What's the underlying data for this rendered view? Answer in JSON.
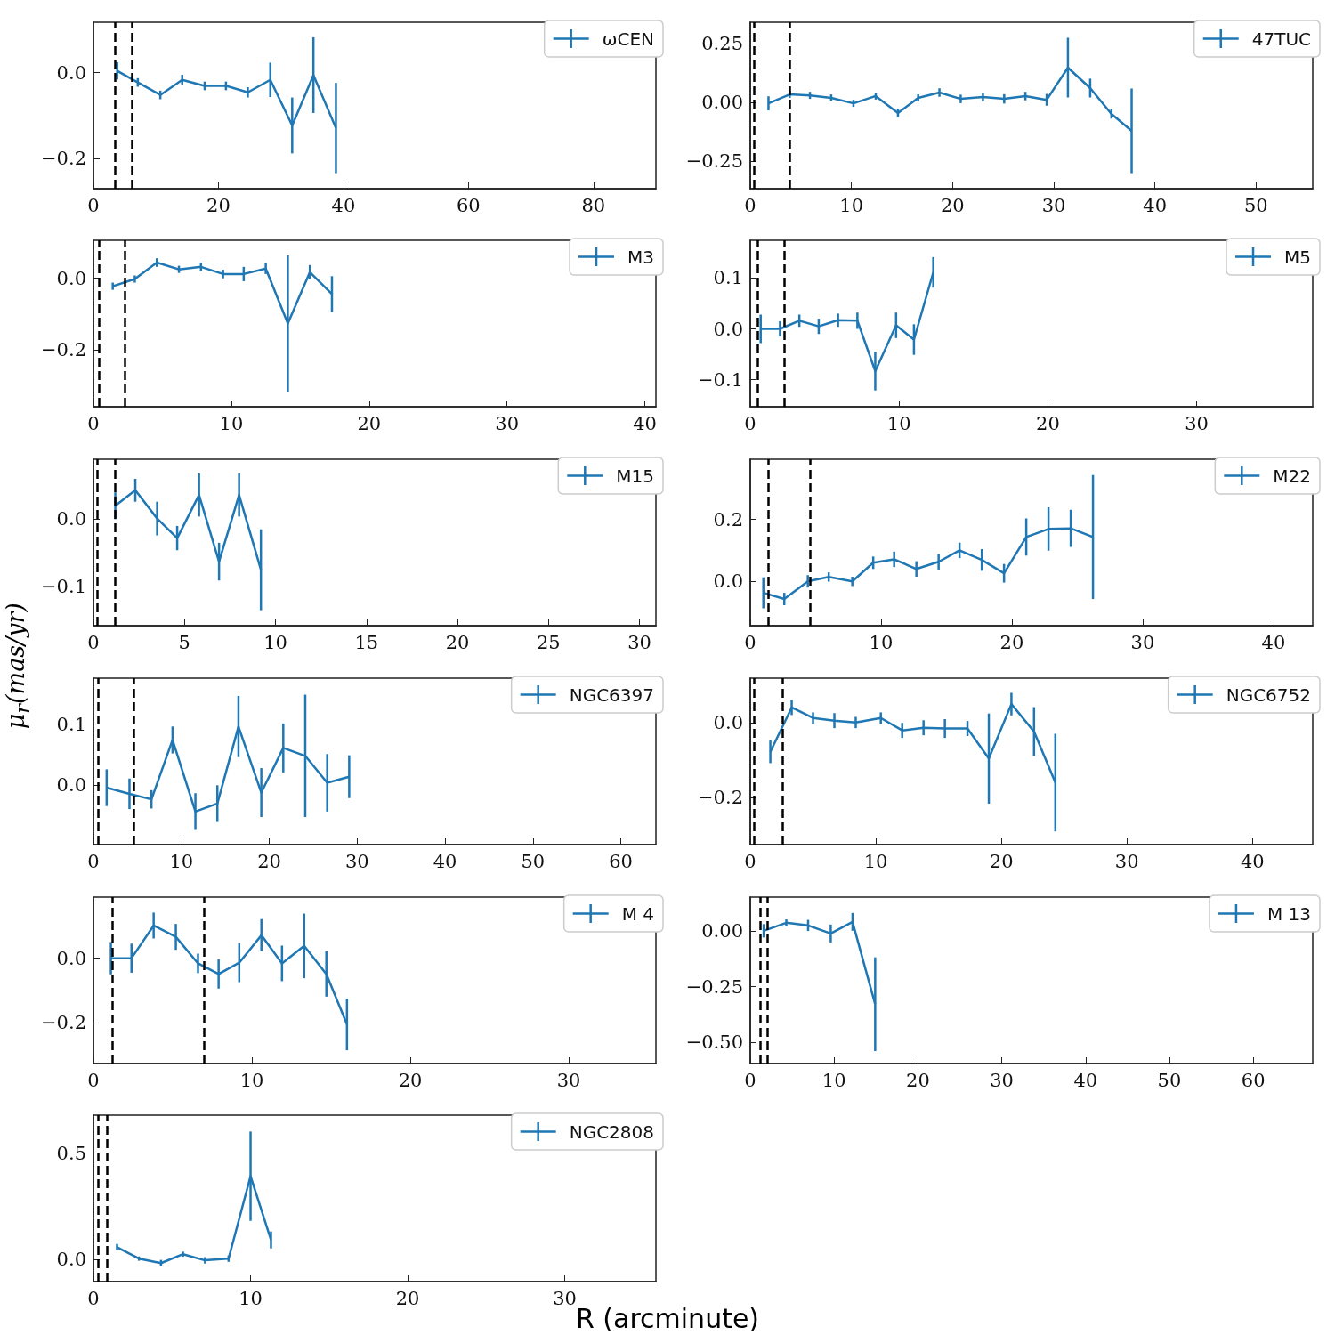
{
  "chart_data": [
    {
      "type": "line",
      "x": [
        3.8,
        7.1,
        10.7,
        14.2,
        17.8,
        21.2,
        24.7,
        28.3,
        31.8,
        35.2,
        38.8
      ],
      "series": [
        {
          "name": "ωCEN",
          "color": "#1f77b4",
          "values": [
            0.004,
            -0.023,
            -0.052,
            -0.017,
            -0.031,
            -0.031,
            -0.046,
            -0.017,
            -0.123,
            -0.006,
            -0.129
          ],
          "errors": [
            0.02,
            0.01,
            0.01,
            0.012,
            0.01,
            0.01,
            0.012,
            0.04,
            0.065,
            0.088,
            0.105
          ]
        }
      ],
      "xlim": [
        0,
        90
      ],
      "ylim": [
        -0.27,
        0.117
      ],
      "xticks": [
        0,
        20,
        40,
        60,
        80
      ],
      "yticks": [
        {
          "value": -0.2,
          "label": "−0.2"
        },
        {
          "value": 0,
          "label": "0.0"
        }
      ],
      "ref_lines": [
        {
          "axis": "x",
          "value": 3.5,
          "color": "#000000",
          "line_style": "dashed"
        },
        {
          "axis": "x",
          "value": 6.1,
          "color": "#000000",
          "line_style": "dashed"
        }
      ],
      "legend": "top right"
    },
    {
      "type": "line",
      "x": [
        1.8,
        3.9,
        5.9,
        8.0,
        10.2,
        12.4,
        14.6,
        16.6,
        18.7,
        20.8,
        23.0,
        25.1,
        27.2,
        29.3,
        31.4,
        33.6,
        35.7,
        37.7
      ],
      "series": [
        {
          "name": "47TUC",
          "color": "#1f77b4",
          "values": [
            -0.004,
            0.034,
            0.03,
            0.019,
            -0.004,
            0.027,
            -0.045,
            0.019,
            0.042,
            0.015,
            0.023,
            0.015,
            0.027,
            0.011,
            0.148,
            0.061,
            -0.049,
            -0.121
          ],
          "errors": [
            0.03,
            0.015,
            0.015,
            0.015,
            0.015,
            0.015,
            0.018,
            0.015,
            0.018,
            0.018,
            0.018,
            0.02,
            0.018,
            0.025,
            0.127,
            0.04,
            0.02,
            0.18
          ]
        }
      ],
      "xlim": [
        0,
        55.6
      ],
      "ylim": [
        -0.367,
        0.341
      ],
      "xticks": [
        0,
        10,
        20,
        30,
        40,
        50
      ],
      "yticks": [
        {
          "value": -0.25,
          "label": "−0.25"
        },
        {
          "value": 0,
          "label": "0.00"
        },
        {
          "value": 0.25,
          "label": "0.25"
        }
      ],
      "ref_lines": [
        {
          "axis": "x",
          "value": 0.35,
          "color": "#000000",
          "line_style": "dashed"
        },
        {
          "axis": "x",
          "value": 3.9,
          "color": "#000000",
          "line_style": "dashed"
        }
      ],
      "legend": "top right"
    },
    {
      "type": "line",
      "x": [
        1.4,
        3.0,
        4.6,
        6.2,
        7.8,
        9.4,
        10.9,
        12.5,
        14.1,
        15.7,
        17.3
      ],
      "series": [
        {
          "name": "M3",
          "color": "#1f77b4",
          "values": [
            -0.022,
            -0.002,
            0.044,
            0.025,
            0.032,
            0.012,
            0.012,
            0.027,
            -0.126,
            0.017,
            -0.044
          ],
          "errors": [
            0.01,
            0.01,
            0.012,
            0.01,
            0.012,
            0.012,
            0.02,
            0.015,
            0.19,
            0.02,
            0.05
          ]
        }
      ],
      "xlim": [
        0,
        40.8
      ],
      "ylim": [
        -0.358,
        0.106
      ],
      "xticks": [
        0,
        10,
        20,
        30,
        40
      ],
      "yticks": [
        {
          "value": -0.2,
          "label": "−0.2"
        },
        {
          "value": 0,
          "label": "0.0"
        }
      ],
      "ref_lines": [
        {
          "axis": "x",
          "value": 0.4,
          "color": "#000000",
          "line_style": "dashed"
        },
        {
          "axis": "x",
          "value": 2.3,
          "color": "#000000",
          "line_style": "dashed"
        }
      ],
      "legend": "top right"
    },
    {
      "type": "line",
      "x": [
        0.7,
        2.0,
        3.3,
        4.6,
        5.9,
        7.2,
        8.4,
        9.8,
        11.0,
        12.3
      ],
      "series": [
        {
          "name": "M5",
          "color": "#1f77b4",
          "values": [
            0.0,
            0.0,
            0.016,
            0.005,
            0.017,
            0.016,
            -0.083,
            0.007,
            -0.021,
            0.111
          ],
          "errors": [
            0.028,
            0.015,
            0.012,
            0.015,
            0.013,
            0.016,
            0.038,
            0.025,
            0.03,
            0.03
          ]
        }
      ],
      "xlim": [
        0,
        37.8
      ],
      "ylim": [
        -0.153,
        0.174
      ],
      "xticks": [
        0,
        10,
        20,
        30
      ],
      "yticks": [
        {
          "value": -0.1,
          "label": "−0.1"
        },
        {
          "value": 0,
          "label": "0.0"
        },
        {
          "value": 0.1,
          "label": "0.1"
        }
      ],
      "ref_lines": [
        {
          "axis": "x",
          "value": 0.5,
          "color": "#000000",
          "line_style": "dashed"
        },
        {
          "axis": "x",
          "value": 2.3,
          "color": "#000000",
          "line_style": "dashed"
        }
      ],
      "legend": "top right"
    },
    {
      "type": "line",
      "x": [
        1.2,
        2.3,
        3.5,
        4.6,
        5.8,
        6.9,
        8.0,
        9.2
      ],
      "series": [
        {
          "name": "M15",
          "color": "#1f77b4",
          "values": [
            0.02,
            0.043,
            0.001,
            -0.028,
            0.036,
            -0.063,
            0.036,
            -0.075
          ],
          "errors": [
            0.02,
            0.017,
            0.025,
            0.018,
            0.032,
            0.028,
            0.032,
            0.06
          ]
        }
      ],
      "xlim": [
        0,
        30.9
      ],
      "ylim": [
        -0.158,
        0.089
      ],
      "xticks": [
        0,
        5,
        10,
        15,
        20,
        25,
        30
      ],
      "yticks": [
        {
          "value": -0.1,
          "label": "−0.1"
        },
        {
          "value": 0,
          "label": "0.0"
        }
      ],
      "ref_lines": [
        {
          "axis": "x",
          "value": 0.2,
          "color": "#000000",
          "line_style": "dashed"
        },
        {
          "axis": "x",
          "value": 1.2,
          "color": "#000000",
          "line_style": "dashed"
        }
      ],
      "legend": "top right"
    },
    {
      "type": "line",
      "x": [
        1.0,
        2.6,
        4.4,
        6.0,
        7.8,
        9.4,
        11.0,
        12.7,
        14.4,
        16.0,
        17.7,
        19.4,
        21.1,
        22.8,
        24.5,
        26.2
      ],
      "series": [
        {
          "name": "M22",
          "color": "#1f77b4",
          "values": [
            -0.037,
            -0.057,
            0.0,
            0.014,
            0.0,
            0.06,
            0.071,
            0.04,
            0.063,
            0.1,
            0.069,
            0.026,
            0.143,
            0.169,
            0.171,
            0.143
          ],
          "errors": [
            0.05,
            0.02,
            0.02,
            0.015,
            0.015,
            0.02,
            0.025,
            0.025,
            0.025,
            0.025,
            0.035,
            0.03,
            0.06,
            0.07,
            0.06,
            0.2
          ]
        }
      ],
      "xlim": [
        0,
        43
      ],
      "ylim": [
        -0.143,
        0.394
      ],
      "xticks": [
        0,
        10,
        20,
        30,
        40
      ],
      "yticks": [
        {
          "value": 0,
          "label": "0.0"
        },
        {
          "value": 0.2,
          "label": "0.2"
        }
      ],
      "ref_lines": [
        {
          "axis": "x",
          "value": 1.4,
          "color": "#000000",
          "line_style": "dashed"
        },
        {
          "axis": "x",
          "value": 4.6,
          "color": "#000000",
          "line_style": "dashed"
        }
      ],
      "legend": "top right"
    },
    {
      "type": "line",
      "x": [
        1.5,
        4.1,
        6.6,
        9.0,
        11.6,
        14.1,
        16.5,
        19.1,
        21.6,
        24.1,
        26.6,
        29.1
      ],
      "series": [
        {
          "name": "NGC6397",
          "color": "#1f77b4",
          "values": [
            -0.004,
            -0.014,
            -0.023,
            0.074,
            -0.043,
            -0.03,
            0.096,
            -0.012,
            0.061,
            0.048,
            0.004,
            0.014
          ],
          "errors": [
            0.03,
            0.025,
            0.015,
            0.022,
            0.03,
            0.03,
            0.05,
            0.04,
            0.04,
            0.1,
            0.047,
            0.035
          ]
        }
      ],
      "xlim": [
        0,
        64
      ],
      "ylim": [
        -0.097,
        0.175
      ],
      "xticks": [
        0,
        10,
        20,
        30,
        40,
        50,
        60
      ],
      "yticks": [
        {
          "value": 0,
          "label": "0.0"
        },
        {
          "value": 0.1,
          "label": "0.1"
        }
      ],
      "ref_lines": [
        {
          "axis": "x",
          "value": 0.5,
          "color": "#000000",
          "line_style": "dashed"
        },
        {
          "axis": "x",
          "value": 4.6,
          "color": "#000000",
          "line_style": "dashed"
        }
      ],
      "legend": "top right",
      "ylabel": "μ$_{r}$(mas/yr)"
    },
    {
      "type": "line",
      "x": [
        1.6,
        3.3,
        5.0,
        6.7,
        8.4,
        10.4,
        12.1,
        13.8,
        15.5,
        17.3,
        19.0,
        20.8,
        22.6,
        24.3
      ],
      "series": [
        {
          "name": "NGC6752",
          "color": "#1f77b4",
          "values": [
            -0.078,
            0.04,
            0.012,
            0.005,
            0.0,
            0.012,
            -0.021,
            -0.014,
            -0.016,
            -0.016,
            -0.096,
            0.049,
            -0.024,
            -0.16
          ],
          "errors": [
            0.03,
            0.02,
            0.015,
            0.02,
            0.015,
            0.015,
            0.02,
            0.02,
            0.025,
            0.02,
            0.12,
            0.03,
            0.065,
            0.13
          ]
        }
      ],
      "xlim": [
        0,
        44.8
      ],
      "ylim": [
        -0.325,
        0.118
      ],
      "xticks": [
        0,
        10,
        20,
        30,
        40
      ],
      "yticks": [
        {
          "value": -0.2,
          "label": "−0.2"
        },
        {
          "value": 0,
          "label": "0.0"
        }
      ],
      "ref_lines": [
        {
          "axis": "x",
          "value": 0.3,
          "color": "#000000",
          "line_style": "dashed"
        },
        {
          "axis": "x",
          "value": 2.6,
          "color": "#000000",
          "line_style": "dashed"
        }
      ],
      "legend": "top right"
    },
    {
      "type": "line",
      "x": [
        1.1,
        2.4,
        3.8,
        5.2,
        6.6,
        7.9,
        9.2,
        10.6,
        11.9,
        13.3,
        14.7,
        16.0
      ],
      "series": [
        {
          "name": "M 4",
          "color": "#1f77b4",
          "values": [
            0.0,
            0.0,
            0.101,
            0.066,
            -0.016,
            -0.049,
            -0.014,
            0.071,
            -0.016,
            0.038,
            -0.049,
            -0.205
          ],
          "errors": [
            0.05,
            0.045,
            0.04,
            0.04,
            0.03,
            0.045,
            0.06,
            0.05,
            0.055,
            0.1,
            0.07,
            0.08
          ]
        }
      ],
      "xlim": [
        0,
        35.5
      ],
      "ylim": [
        -0.326,
        0.189
      ],
      "xticks": [
        0,
        10,
        20,
        30
      ],
      "yticks": [
        {
          "value": -0.2,
          "label": "−0.2"
        },
        {
          "value": 0,
          "label": "0.0"
        }
      ],
      "ref_lines": [
        {
          "axis": "x",
          "value": 1.2,
          "color": "#000000",
          "line_style": "dashed"
        },
        {
          "axis": "x",
          "value": 7.0,
          "color": "#000000",
          "line_style": "dashed"
        }
      ],
      "legend": "top right"
    },
    {
      "type": "line",
      "x": [
        1.6,
        4.3,
        6.9,
        9.6,
        12.2,
        14.9
      ],
      "series": [
        {
          "name": "M 13",
          "color": "#1f77b4",
          "values": [
            0.0,
            0.036,
            0.024,
            -0.012,
            0.04,
            -0.329
          ],
          "errors": [
            0.03,
            0.015,
            0.025,
            0.04,
            0.04,
            0.21
          ]
        }
      ],
      "xlim": [
        0,
        67.1
      ],
      "ylim": [
        -0.595,
        0.151
      ],
      "xticks": [
        0,
        10,
        20,
        30,
        40,
        50,
        60
      ],
      "yticks": [
        {
          "value": -0.5,
          "label": "−0.50"
        },
        {
          "value": -0.25,
          "label": "−0.25"
        },
        {
          "value": 0,
          "label": "0.00"
        }
      ],
      "ref_lines": [
        {
          "axis": "x",
          "value": 1.2,
          "color": "#000000",
          "line_style": "dashed"
        },
        {
          "axis": "x",
          "value": 2.0,
          "color": "#000000",
          "line_style": "dashed"
        }
      ],
      "legend": "top right"
    },
    {
      "type": "line",
      "x": [
        1.5,
        2.9,
        4.3,
        5.7,
        7.1,
        8.6,
        10.0,
        11.3
      ],
      "series": [
        {
          "name": "NGC2808",
          "color": "#1f77b4",
          "values": [
            0.058,
            0.004,
            -0.017,
            0.025,
            -0.004,
            0.004,
            0.392,
            0.092
          ],
          "errors": [
            0.015,
            0.01,
            0.015,
            0.012,
            0.015,
            0.015,
            0.21,
            0.04
          ]
        }
      ],
      "xlim": [
        0,
        35.8
      ],
      "ylim": [
        -0.104,
        0.679
      ],
      "xticks": [
        0,
        10,
        20,
        30
      ],
      "yticks": [
        {
          "value": 0,
          "label": "0.0"
        },
        {
          "value": 0.5,
          "label": "0.5"
        }
      ],
      "ref_lines": [
        {
          "axis": "x",
          "value": 0.3,
          "color": "#000000",
          "line_style": "dashed"
        },
        {
          "axis": "x",
          "value": 0.85,
          "color": "#000000",
          "line_style": "dashed"
        }
      ],
      "legend": "top right",
      "xlabel": "R (arcminute)"
    }
  ]
}
